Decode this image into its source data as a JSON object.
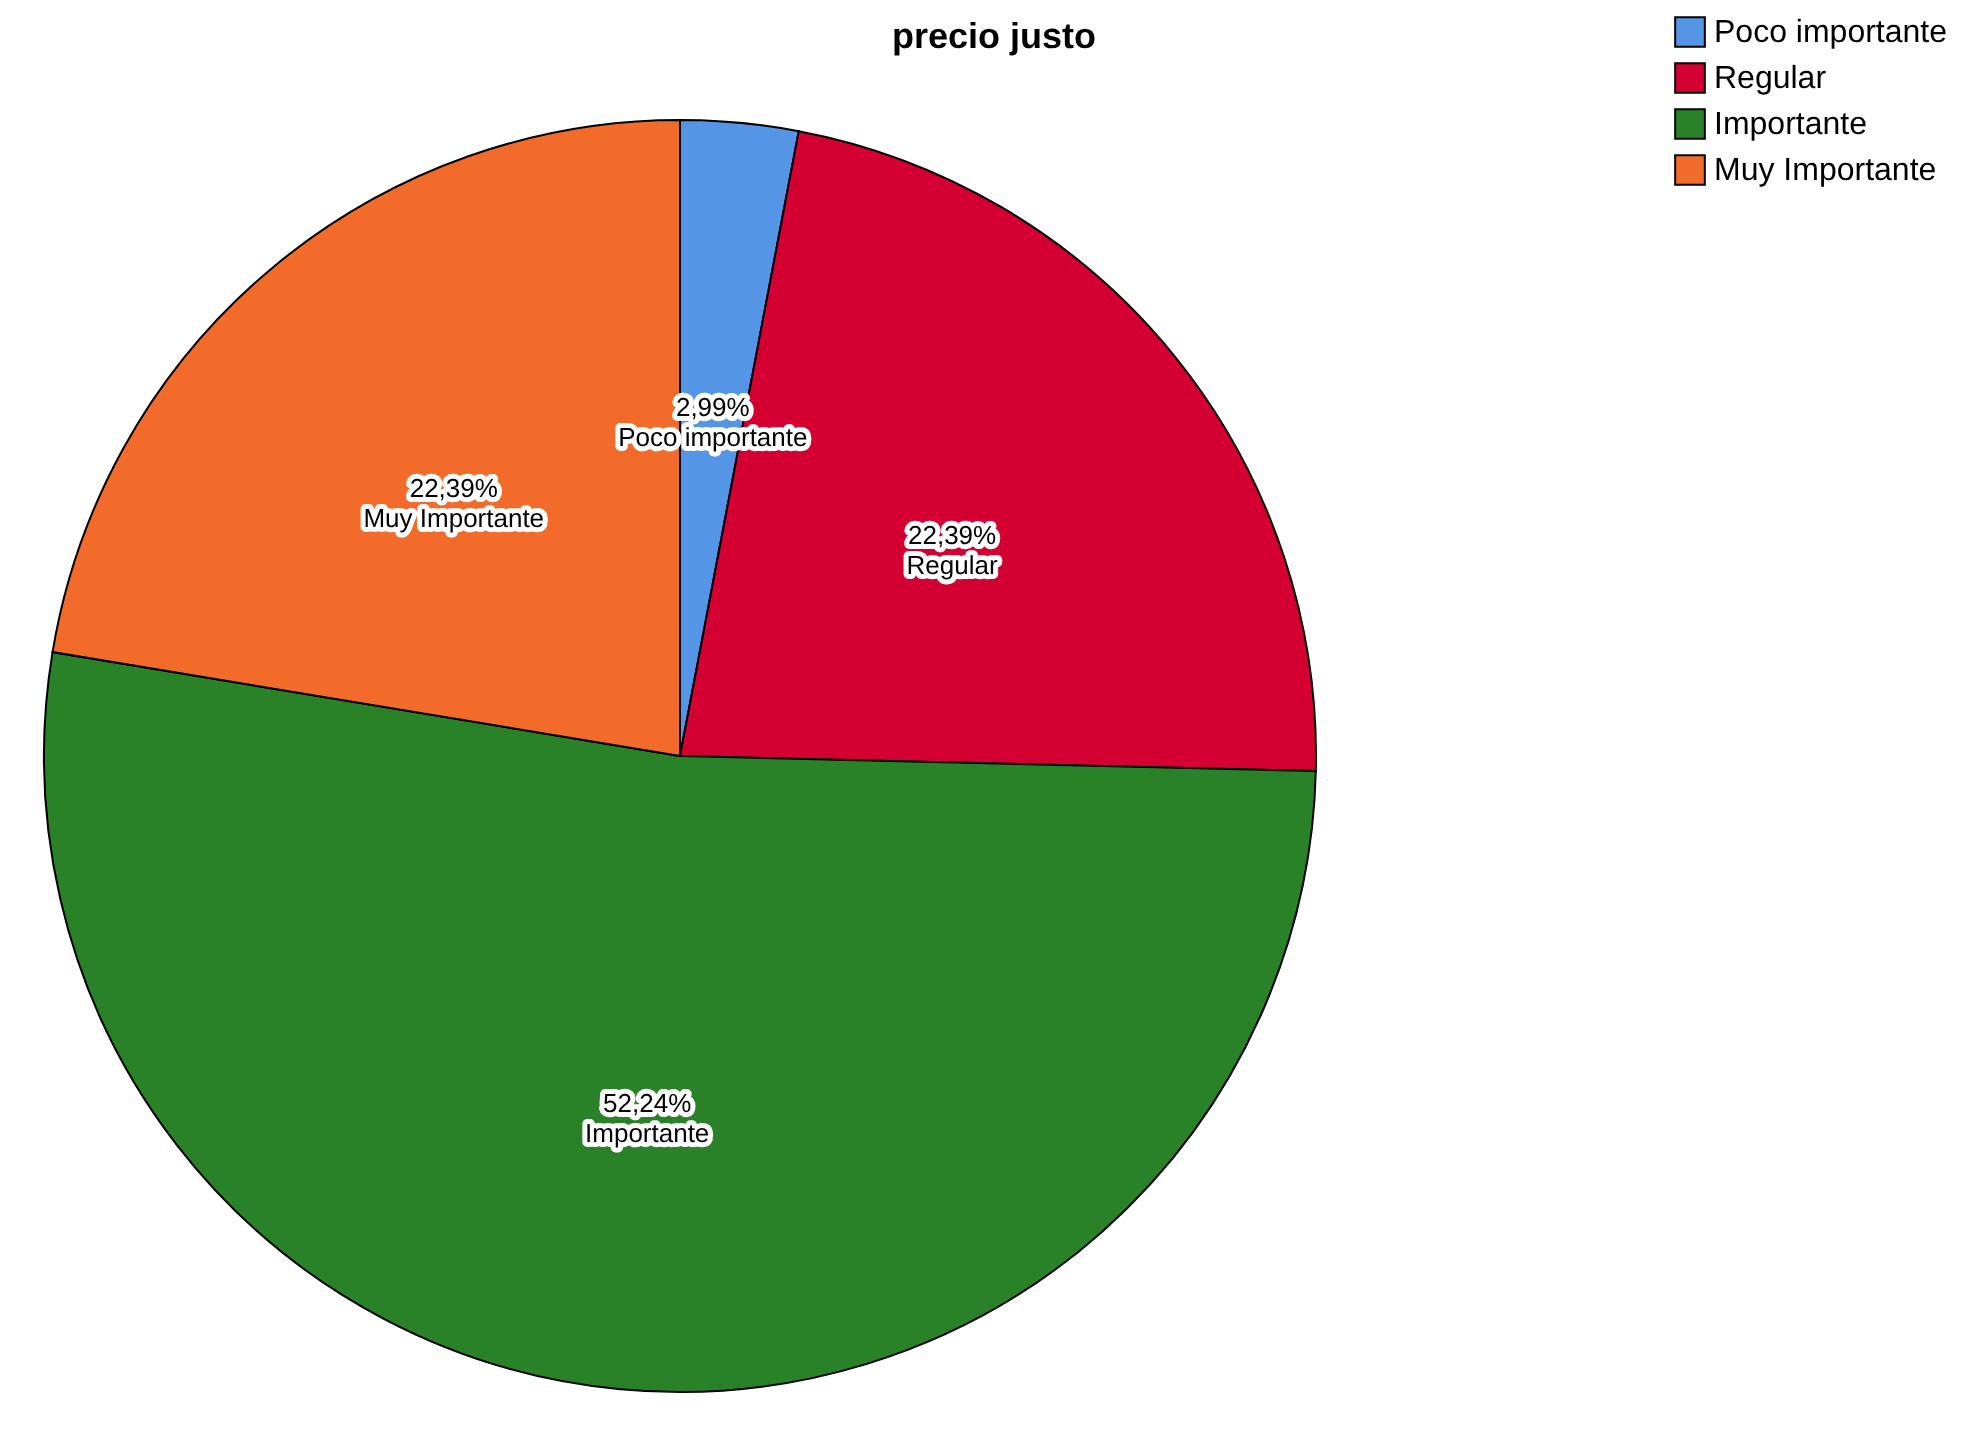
{
  "chart_data": {
    "type": "pie",
    "title": "precio justo",
    "categories": [
      "Poco importante",
      "Regular",
      "Importante",
      "Muy Importante"
    ],
    "values": [
      2.99,
      22.39,
      52.24,
      22.39
    ],
    "colors": [
      "#5595e6",
      "#d50032",
      "#2a8228",
      "#f26b2b"
    ],
    "value_labels": [
      "2,99%",
      "22,39%",
      "52,24%",
      "22,39%"
    ],
    "legend": "top right"
  }
}
